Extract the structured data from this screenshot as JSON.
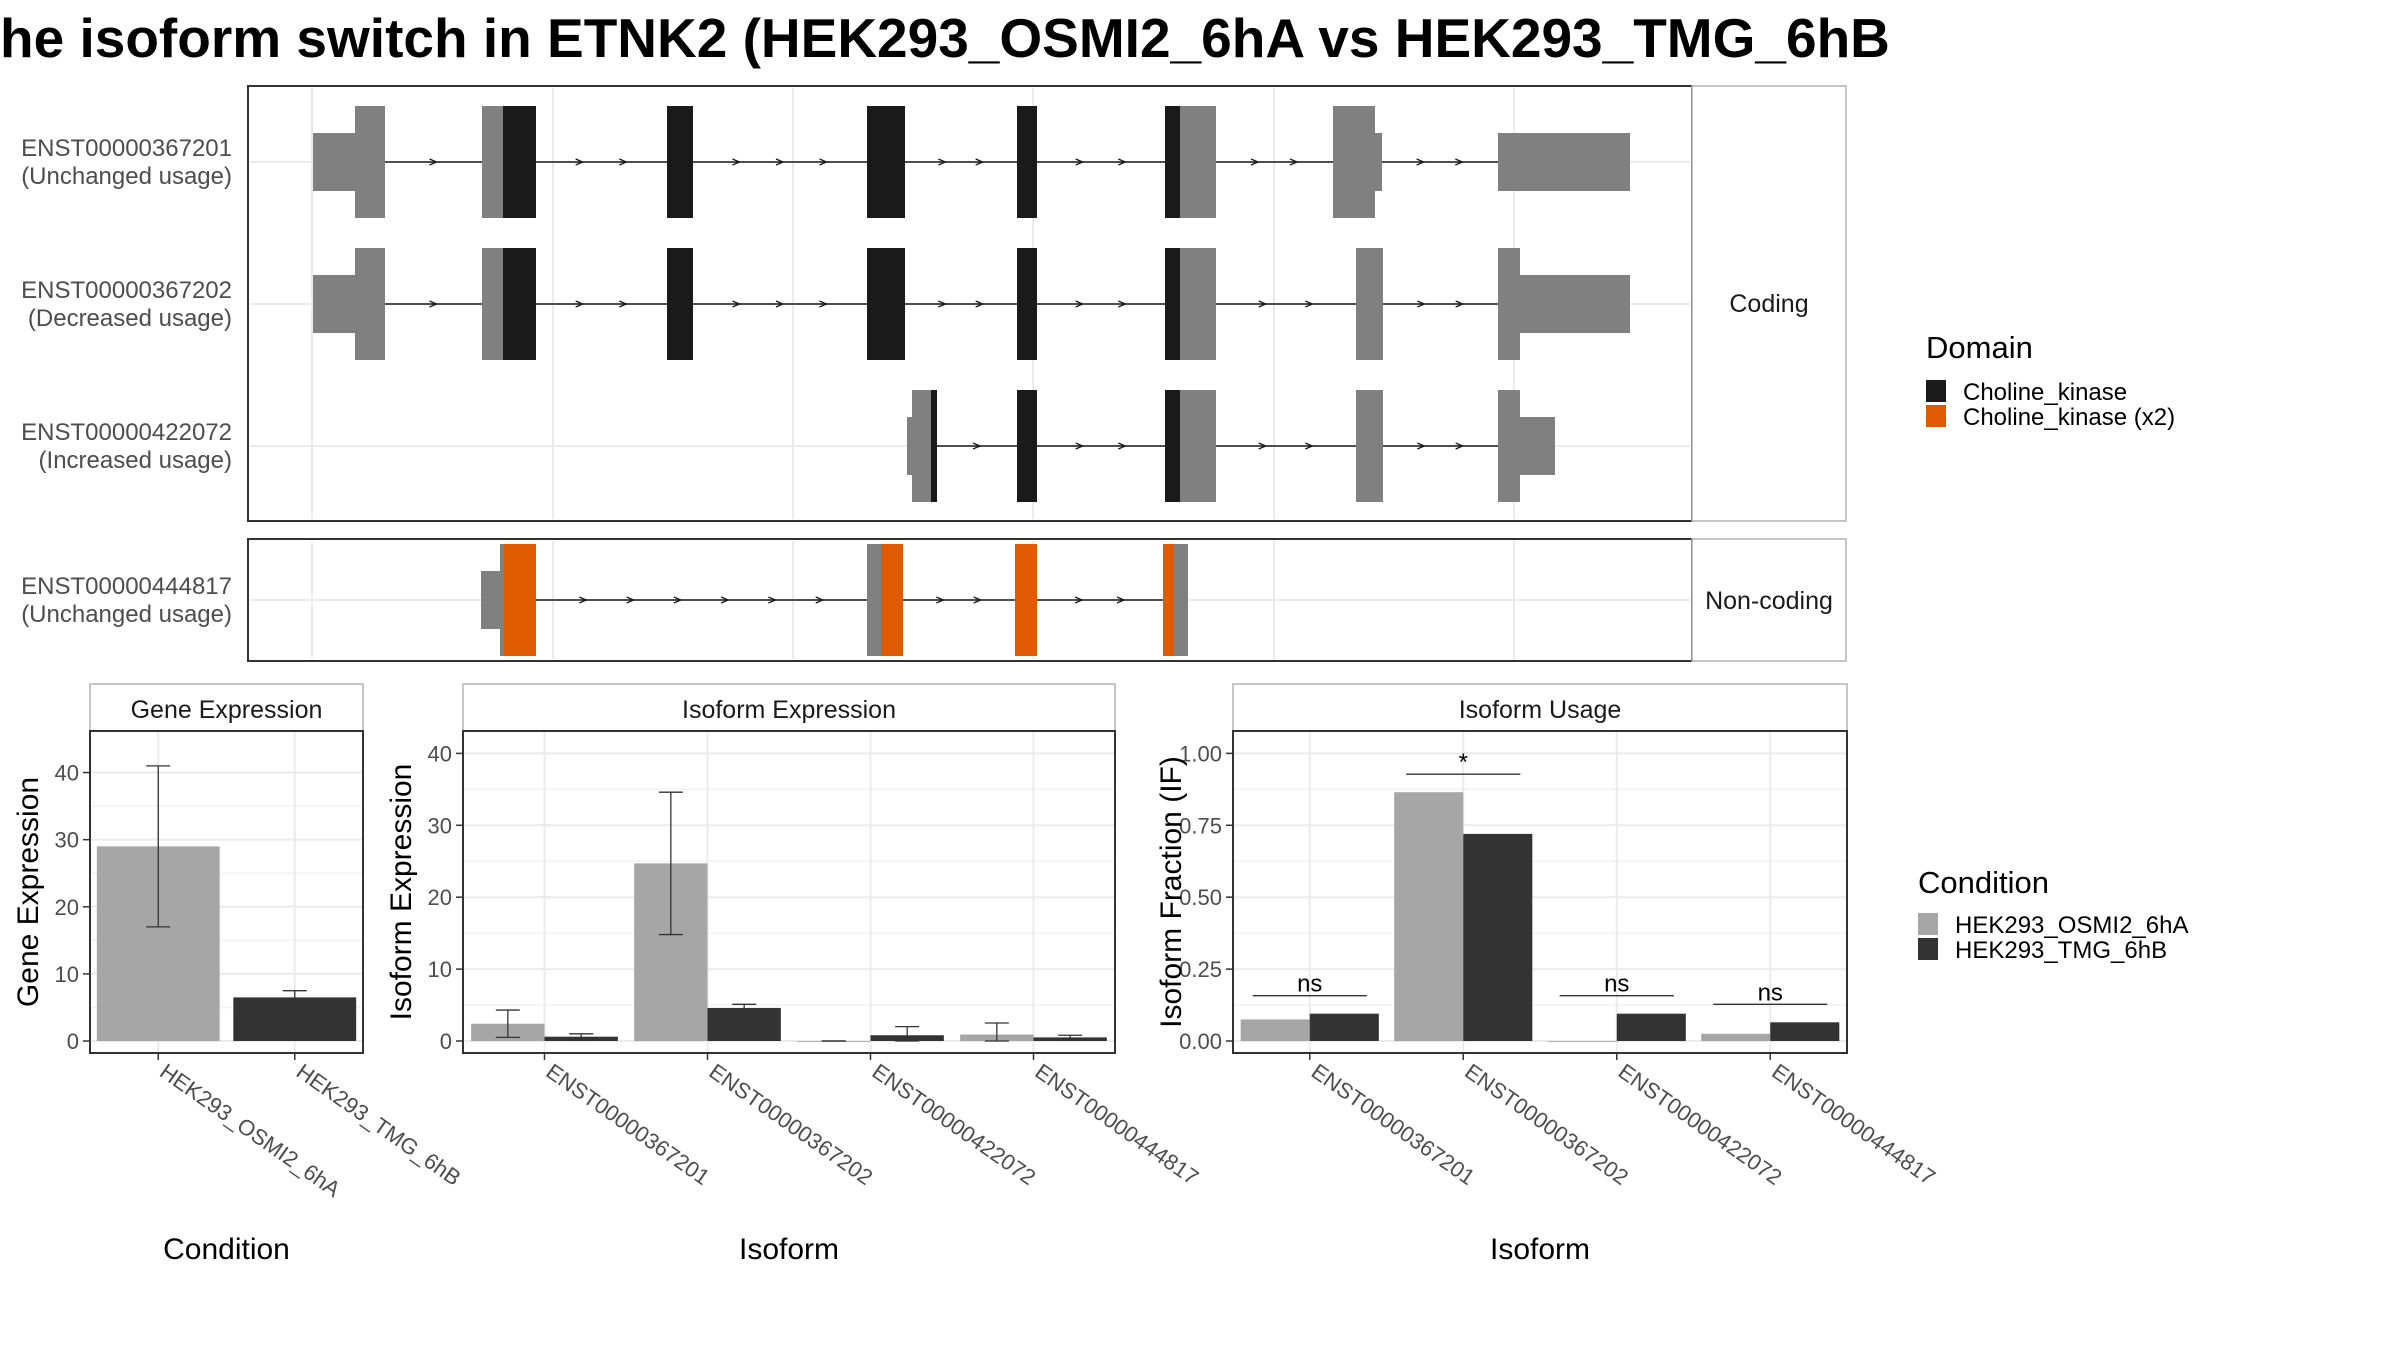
{
  "title": "he isoform switch in ETNK2 (HEK293_OSMI2_6hA vs HEK293_TMG_6hB",
  "colors": {
    "utr": "#808080",
    "choline_kinase": "#1a1a1a",
    "choline_kinase_x2": "#e05a00",
    "cond_a": "#a6a6a6",
    "cond_b": "#333333"
  },
  "transcripts": [
    {
      "id": "ENST00000367201",
      "status": "(Unchanged usage)",
      "group": "Coding"
    },
    {
      "id": "ENST00000367202",
      "status": "(Decreased usage)",
      "group": "Coding"
    },
    {
      "id": "ENST00000422072",
      "status": "(Increased usage)",
      "group": "Coding"
    },
    {
      "id": "ENST00000444817",
      "status": "(Unchanged usage)",
      "group": "Non-coding"
    }
  ],
  "facets": {
    "coding": "Coding",
    "noncoding": "Non-coding"
  },
  "domain_legend": {
    "title": "Domain",
    "items": [
      {
        "label": "Choline_kinase",
        "color": "#1a1a1a"
      },
      {
        "label": "Choline_kinase (x2)",
        "color": "#e05a00"
      }
    ]
  },
  "condition_legend": {
    "title": "Condition",
    "items": [
      {
        "label": "HEK293_OSMI2_6hA",
        "color": "#a6a6a6"
      },
      {
        "label": "HEK293_TMG_6hB",
        "color": "#333333"
      }
    ]
  },
  "chart_data": [
    {
      "type": "bar",
      "panel_title": "Gene Expression",
      "xlabel": "Condition",
      "ylabel": "Gene Expression",
      "ylim": [
        0,
        45
      ],
      "yticks": [
        0,
        10,
        20,
        30,
        40
      ],
      "categories": [
        "HEK293_OSMI2_6hA",
        "HEK293_TMG_6hB"
      ],
      "values": [
        29,
        6.5
      ],
      "error_low": [
        17,
        5.5
      ],
      "error_high": [
        41,
        7.5
      ]
    },
    {
      "type": "bar",
      "panel_title": "Isoform Expression",
      "xlabel": "Isoform",
      "ylabel": "Isoform Expression",
      "ylim": [
        0,
        42
      ],
      "yticks": [
        0,
        10,
        20,
        30,
        40
      ],
      "categories": [
        "ENST00000367201",
        "ENST00000367202",
        "ENST00000422072",
        "ENST00000444817"
      ],
      "series": [
        {
          "name": "HEK293_OSMI2_6hA",
          "values": [
            2.4,
            24.7,
            0,
            0.9
          ],
          "error_low": [
            0.5,
            14.8,
            0,
            0
          ],
          "error_high": [
            4.3,
            34.6,
            0,
            2.5
          ]
        },
        {
          "name": "HEK293_TMG_6hB",
          "values": [
            0.6,
            4.6,
            0.8,
            0.5
          ],
          "error_low": [
            0.2,
            4.0,
            0,
            0.2
          ],
          "error_high": [
            1.0,
            5.1,
            2.0,
            0.8
          ]
        }
      ]
    },
    {
      "type": "bar",
      "panel_title": "Isoform Usage",
      "xlabel": "Isoform",
      "ylabel": "Isoform Fraction (IF)",
      "ylim": [
        0,
        1.05
      ],
      "yticks": [
        "0.00",
        "0.25",
        "0.50",
        "0.75",
        "1.00"
      ],
      "categories": [
        "ENST00000367201",
        "ENST00000367202",
        "ENST00000422072",
        "ENST00000444817"
      ],
      "series": [
        {
          "name": "HEK293_OSMI2_6hA",
          "values": [
            0.075,
            0.865,
            0,
            0.025
          ]
        },
        {
          "name": "HEK293_TMG_6hB",
          "values": [
            0.095,
            0.72,
            0.095,
            0.065
          ]
        }
      ],
      "significance": [
        "ns",
        "*",
        "ns",
        "ns"
      ]
    }
  ]
}
